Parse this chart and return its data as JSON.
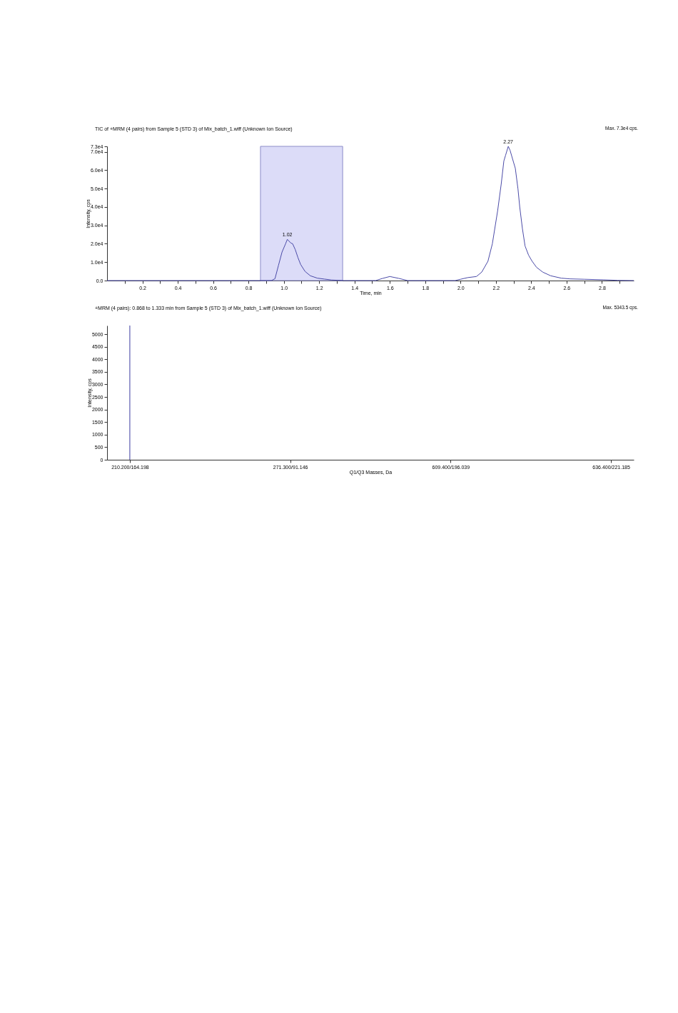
{
  "chart_data": [
    {
      "type": "line",
      "title": "TIC of +MRM (4 pairs) from Sample 5 (STD 3) of Mix_batch_1.wiff (Unknown Ion Source)",
      "xlabel": "Time, min",
      "ylabel": "Intensity, cps",
      "x": [
        0,
        0.93,
        0.95,
        0.97,
        0.99,
        1.01,
        1.02,
        1.04,
        1.05,
        1.065,
        1.08,
        1.095,
        1.12,
        1.15,
        1.19,
        1.23,
        1.27,
        1.34,
        1.52,
        1.56,
        1.6,
        1.65,
        1.7,
        1.97,
        2.0,
        2.04,
        2.09,
        2.12,
        2.155,
        2.18,
        2.21,
        2.23,
        2.245,
        2.255,
        2.27,
        2.28,
        2.29,
        2.31,
        2.325,
        2.335,
        2.35,
        2.365,
        2.385,
        2.405,
        2.43,
        2.465,
        2.51,
        2.57,
        2.62,
        2.7,
        2.81,
        2.89,
        2.98
      ],
      "series": [
        {
          "color": "#4b4ba8",
          "values": [
            0,
            0,
            1000,
            8300,
            15500,
            20000,
            22400,
            20400,
            20000,
            16800,
            12500,
            8800,
            5000,
            2600,
            1300,
            800,
            300,
            0,
            0,
            1200,
            2200,
            1200,
            0,
            0,
            700,
            1600,
            2200,
            4600,
            10500,
            20000,
            38000,
            52400,
            65000,
            68200,
            73000,
            70900,
            67600,
            61000,
            49800,
            40000,
            28300,
            18800,
            13800,
            10500,
            7200,
            4600,
            2600,
            1300,
            900,
            700,
            400,
            100,
            0
          ]
        }
      ],
      "xlim": [
        0,
        2.98
      ],
      "xticks": [
        {
          "value": 0.1,
          "label": null
        },
        0.2,
        {
          "value": 0.3,
          "label": null
        },
        0.4,
        {
          "value": 0.5,
          "label": null
        },
        0.6,
        {
          "value": 0.7,
          "label": null
        },
        0.8,
        {
          "value": 0.9,
          "label": null
        },
        {
          "value": 1,
          "label": "1.0"
        },
        {
          "value": 1.1,
          "label": null
        },
        1.2,
        {
          "value": 1.3,
          "label": null
        },
        1.4,
        {
          "value": 1.5,
          "label": null
        },
        1.6,
        {
          "value": 1.7,
          "label": null
        },
        1.8,
        {
          "value": 1.9,
          "label": null
        },
        {
          "value": 2,
          "label": "2.0"
        },
        {
          "value": 2.1,
          "label": null
        },
        2.2,
        {
          "value": 2.3,
          "label": null
        },
        2.4,
        {
          "value": 2.5,
          "label": null
        },
        2.6,
        {
          "value": 2.7,
          "label": null
        },
        2.8,
        {
          "value": 2.9,
          "label": null
        }
      ],
      "ylim": [
        0,
        73000
      ],
      "yticks": [
        {
          "value": 0,
          "label": "0.0"
        },
        {
          "value": 10000,
          "label": "1.0e4"
        },
        {
          "value": 20000,
          "label": "2.0e4"
        },
        {
          "value": 30000,
          "label": "3.0e4"
        },
        {
          "value": 40000,
          "label": "4.0e4"
        },
        {
          "value": 50000,
          "label": "5.0e4"
        },
        {
          "value": 60000,
          "label": "6.0e4"
        },
        {
          "value": 70000,
          "label": "7.0e4"
        },
        {
          "value": 73000,
          "label": "7.3e4"
        }
      ],
      "bands": [
        {
          "axis": "x",
          "from": 0.868,
          "to": 1.333,
          "color": "#dcdcf8"
        }
      ],
      "annotations": [
        "Max. 7.3e4 cps.",
        {
          "text": "1.02",
          "x": 1.02,
          "y": 22400
        },
        {
          "text": "2.27",
          "x": 2.27,
          "y": 73000
        }
      ]
    },
    {
      "type": "bar",
      "title": "+MRM (4 pairs): 0.868 to 1.333 min from Sample 5 (STD 3) of Mix_batch_1.wiff (Unknown Ion Source)",
      "xlabel": "Q1/Q3 Masses, Da",
      "ylabel": "Intensity, cps",
      "categories": [
        "210.200/164.198",
        "271.300/91.146",
        "609.400/196.039",
        "636.400/221.185"
      ],
      "values": [
        5343.5,
        null,
        null,
        null
      ],
      "color": "#3c3ca0",
      "ylim": [
        0,
        5343.5
      ],
      "yticks": [
        0,
        500,
        1000,
        1500,
        2000,
        2500,
        3000,
        3500,
        4000,
        4500,
        5000
      ],
      "annotations": [
        "Max. 5343.5 cps."
      ]
    }
  ]
}
